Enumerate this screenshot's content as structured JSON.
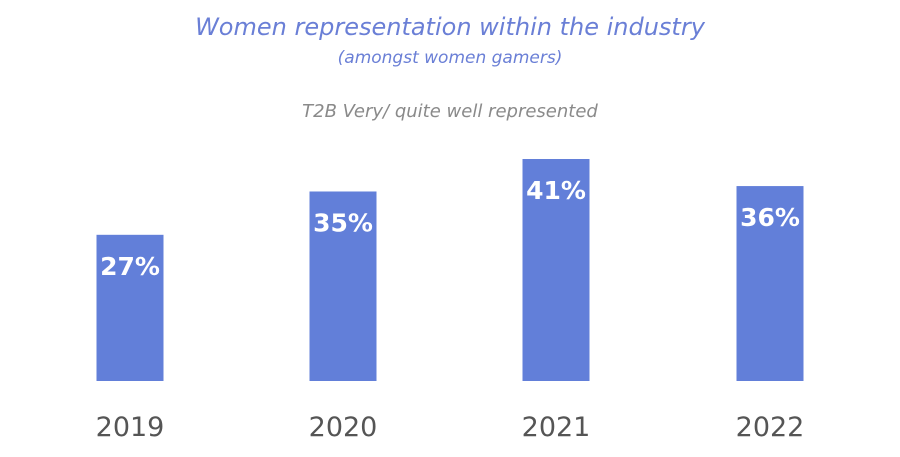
{
  "chart_data": {
    "type": "bar",
    "title": "Women representation within the industry",
    "subtitle": "(amongst women gamers)",
    "note": "T2B Very/ quite well represented",
    "categories": [
      "2019",
      "2020",
      "2021",
      "2022"
    ],
    "values": [
      27,
      35,
      41,
      36
    ],
    "value_labels": [
      "27%",
      "35%",
      "41%",
      "36%"
    ],
    "ylim": [
      0,
      41
    ],
    "grid": false,
    "bar_color": "#627fd9"
  }
}
